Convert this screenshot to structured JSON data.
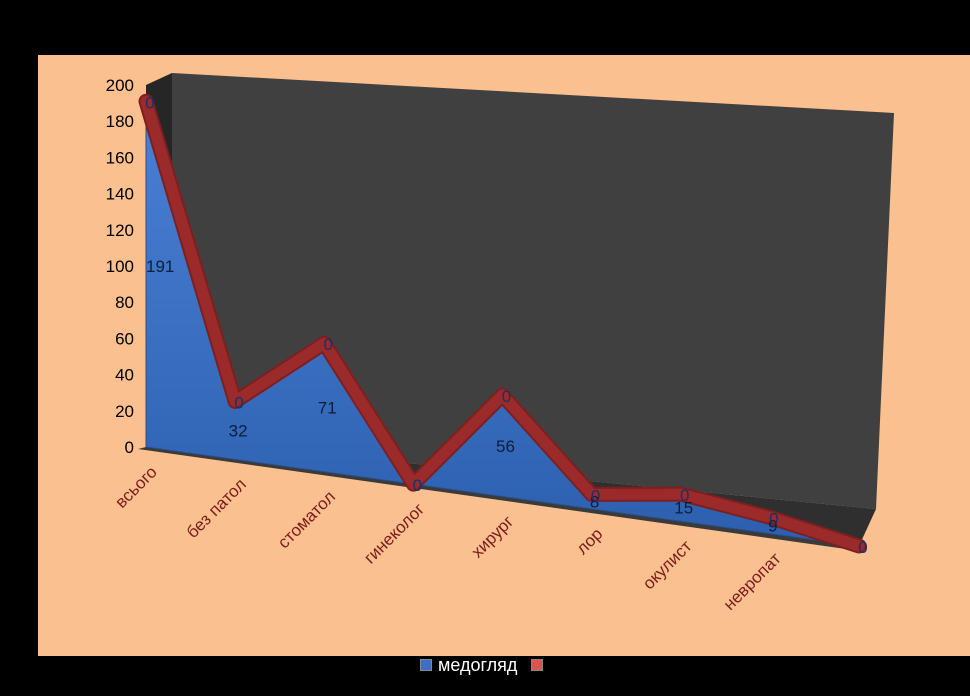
{
  "chart_data": {
    "type": "area",
    "categories": [
      "всього",
      "без патол",
      "стоматол",
      "гинеколог",
      "хирург",
      "лор",
      "окулист",
      "невропат",
      ""
    ],
    "series": [
      {
        "name": "медогляд",
        "values": [
          191,
          32,
          71,
          0,
          56,
          8,
          15,
          9,
          0
        ],
        "labels": [
          "191",
          "32",
          "71",
          "",
          "56",
          "8",
          "15",
          "9",
          ""
        ],
        "color": "#3f6fc4"
      },
      {
        "name": "",
        "values": [
          0,
          0,
          0,
          0,
          0,
          0,
          0,
          0,
          0
        ],
        "labels": [
          "0",
          "0",
          "0",
          "0",
          "0",
          "0",
          "0",
          "0",
          "0"
        ],
        "color": "#9b2b2b"
      }
    ],
    "y_ticks": [
      "0",
      "20",
      "40",
      "60",
      "80",
      "100",
      "120",
      "140",
      "160",
      "180",
      "200"
    ],
    "ylim": [
      0,
      200
    ],
    "legend_position": "bottom",
    "wall_color": "#404040",
    "background_color": "#fac08f"
  },
  "legend": {
    "items": [
      {
        "label": "медогляд",
        "color": "#3f6fc4"
      },
      {
        "label": "",
        "color": "#d9534f"
      }
    ]
  }
}
